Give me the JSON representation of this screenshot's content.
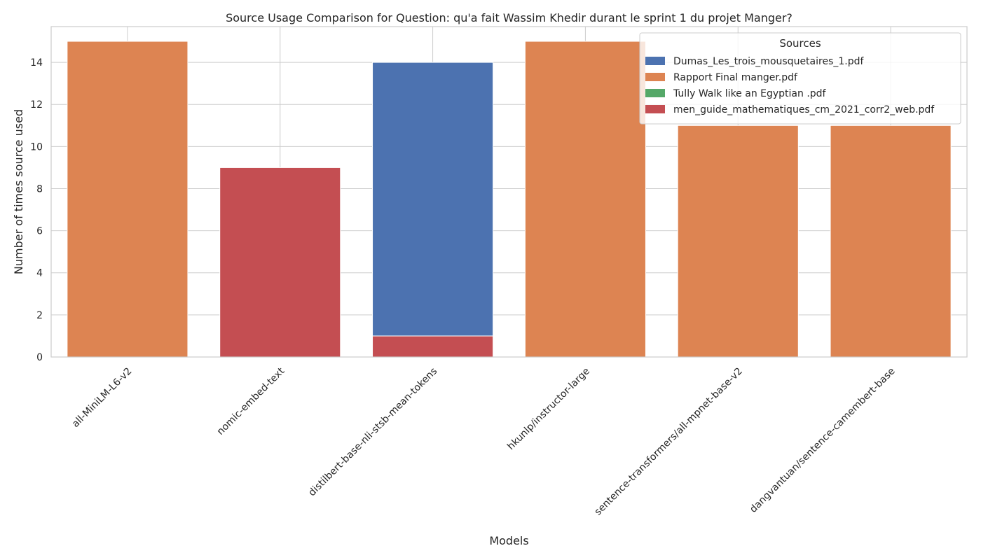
{
  "chart_data": {
    "type": "bar",
    "stacked": true,
    "title": "Source Usage Comparison for Question: qu'a fait Wassim Khedir durant le sprint 1 du projet Manger?",
    "xlabel": "Models",
    "ylabel": "Number of times source used",
    "ylim": [
      0,
      15.7
    ],
    "yticks": [
      0,
      2,
      4,
      6,
      8,
      10,
      12,
      14
    ],
    "grid": true,
    "legend_position": "top-right",
    "legend_title": "Sources",
    "categories": [
      "all-MiniLM-L6-v2",
      "nomic-embed-text",
      "distilbert-base-nli-stsb-mean-tokens",
      "hkunlp/instructor-large",
      "sentence-transformers/all-mpnet-base-v2",
      "dangvantuan/sentence-camembert-base"
    ],
    "series": [
      {
        "name": "Dumas_Les_trois_mousquetaires_1.pdf",
        "color": "#4c72b0",
        "values": [
          0,
          0,
          13,
          0,
          0,
          0
        ]
      },
      {
        "name": "Rapport Final manger.pdf",
        "color": "#dd8452",
        "values": [
          15,
          0,
          0,
          15,
          11,
          11
        ]
      },
      {
        "name": "Tully Walk like an Egyptian .pdf",
        "color": "#55a868",
        "values": [
          0,
          0,
          0,
          0,
          0,
          0
        ]
      },
      {
        "name": "men_guide_mathematiques_cm_2021_corr2_web.pdf",
        "color": "#c44e52",
        "values": [
          0,
          9,
          1,
          0,
          0,
          0
        ]
      }
    ],
    "stack_order": [
      3,
      2,
      1,
      0
    ]
  }
}
